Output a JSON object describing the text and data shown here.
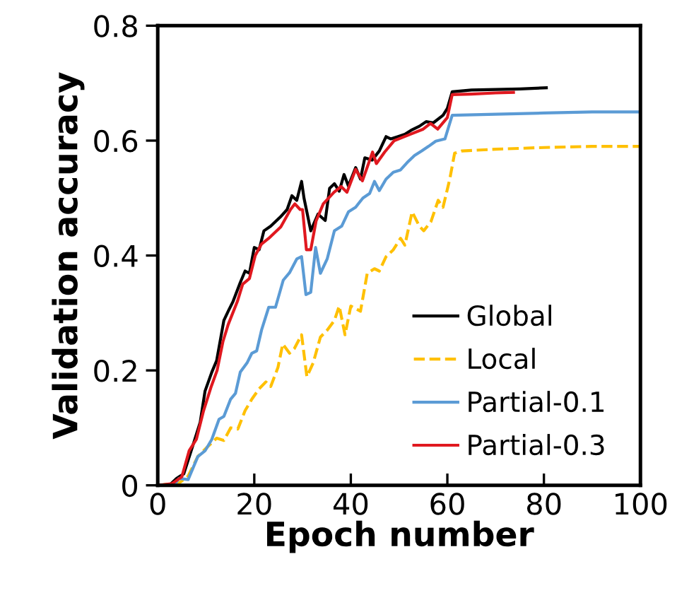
{
  "chart_data": {
    "type": "line",
    "xlabel": "Epoch number",
    "ylabel": "Validation accuracy",
    "xlim": [
      0,
      100
    ],
    "xticks": [
      0,
      20,
      40,
      60,
      80,
      100
    ],
    "ylim": [
      0,
      0.8
    ],
    "yticks": [
      0,
      0.2,
      0.4,
      0.6,
      0.8
    ],
    "grid": false,
    "legend": "lower right",
    "series": [
      {
        "name": "Global",
        "color": "#000000",
        "line_style": "solid",
        "x": [
          0,
          2.4,
          3.9,
          5.4,
          7.3,
          8.8,
          9.8,
          11.2,
          12.2,
          13.7,
          14.6,
          15.6,
          17.1,
          18.1,
          19,
          20,
          21,
          22,
          23.4,
          25.4,
          26.8,
          27.8,
          28.8,
          29.8,
          30.3,
          31.7,
          33.2,
          34.7,
          35.6,
          36.6,
          37.6,
          38.6,
          39.5,
          41,
          42,
          42.9,
          44.4,
          45.9,
          47.3,
          48.3,
          49.8,
          51.2,
          52.7,
          54.2,
          55.6,
          57.1,
          59.1,
          60,
          61,
          65,
          70,
          75,
          80.5
        ],
        "values": [
          0,
          0,
          0.012,
          0.02,
          0.07,
          0.11,
          0.164,
          0.197,
          0.217,
          0.287,
          0.303,
          0.32,
          0.353,
          0.373,
          0.369,
          0.414,
          0.41,
          0.443,
          0.451,
          0.467,
          0.48,
          0.504,
          0.496,
          0.529,
          0.5,
          0.443,
          0.472,
          0.461,
          0.517,
          0.525,
          0.512,
          0.541,
          0.521,
          0.553,
          0.533,
          0.57,
          0.566,
          0.582,
          0.607,
          0.603,
          0.607,
          0.611,
          0.619,
          0.625,
          0.633,
          0.631,
          0.644,
          0.656,
          0.685,
          0.688,
          0.689,
          0.69,
          0.692
        ]
      },
      {
        "name": "Local",
        "color": "#ffc000",
        "line_style": "dashed",
        "x": [
          0,
          4.4,
          6.3,
          8.3,
          10.2,
          12.2,
          13.7,
          15.1,
          16.6,
          18.1,
          19.5,
          21,
          22.4,
          23.4,
          24.9,
          25.9,
          27.3,
          28.3,
          29.8,
          30.9,
          32.2,
          33.7,
          35.1,
          36.6,
          37.6,
          38.8,
          40,
          42,
          43.4,
          44.9,
          45.9,
          47.3,
          48.8,
          50.3,
          51.2,
          52.7,
          54.2,
          55.1,
          56.6,
          58.1,
          59.1,
          60.5,
          61.5,
          63,
          70,
          80,
          90,
          100
        ],
        "values": [
          0,
          0.004,
          0.016,
          0.05,
          0.066,
          0.082,
          0.078,
          0.1,
          0.098,
          0.13,
          0.15,
          0.168,
          0.18,
          0.172,
          0.205,
          0.246,
          0.23,
          0.238,
          0.262,
          0.189,
          0.213,
          0.258,
          0.27,
          0.287,
          0.312,
          0.262,
          0.312,
          0.303,
          0.369,
          0.377,
          0.373,
          0.398,
          0.41,
          0.43,
          0.418,
          0.476,
          0.451,
          0.443,
          0.459,
          0.496,
          0.484,
          0.533,
          0.578,
          0.582,
          0.585,
          0.588,
          0.59,
          0.59
        ]
      },
      {
        "name": "Partial-0.1",
        "color": "#5b9bd5",
        "line_style": "solid",
        "x": [
          0,
          3.4,
          4.4,
          6.3,
          8.3,
          9.8,
          11.2,
          12.7,
          13.7,
          15.1,
          16.1,
          17.1,
          18.5,
          19.5,
          20.5,
          21.5,
          23,
          24.4,
          26,
          27.3,
          28.8,
          29.8,
          30.7,
          31.7,
          32.7,
          33.7,
          35.1,
          36.6,
          38.1,
          39.5,
          41,
          42.5,
          43.9,
          44.9,
          45.9,
          47.3,
          48.8,
          50.3,
          51.7,
          53.2,
          54.7,
          56.1,
          57.6,
          59.5,
          61,
          70,
          80,
          90,
          100
        ],
        "values": [
          0,
          0,
          0.012,
          0.01,
          0.05,
          0.06,
          0.08,
          0.115,
          0.12,
          0.15,
          0.16,
          0.197,
          0.213,
          0.23,
          0.234,
          0.27,
          0.31,
          0.31,
          0.357,
          0.37,
          0.394,
          0.398,
          0.332,
          0.336,
          0.414,
          0.369,
          0.394,
          0.443,
          0.451,
          0.476,
          0.484,
          0.5,
          0.508,
          0.529,
          0.513,
          0.533,
          0.545,
          0.549,
          0.562,
          0.574,
          0.582,
          0.59,
          0.599,
          0.603,
          0.644,
          0.646,
          0.648,
          0.65,
          0.65
        ]
      },
      {
        "name": "Partial-0.3",
        "color": "#e0181f",
        "line_style": "solid",
        "x": [
          0,
          3,
          5,
          6.5,
          8,
          9.5,
          11,
          12.3,
          13.5,
          14.6,
          16.5,
          17.6,
          19,
          20.2,
          21.5,
          23,
          25.5,
          27.5,
          28.4,
          29.5,
          30,
          30.8,
          31.7,
          32.8,
          34.3,
          36.5,
          38,
          39.2,
          41,
          42.4,
          44.5,
          45.3,
          47,
          49,
          52,
          55,
          56.5,
          58,
          60,
          61,
          65,
          70,
          73.7
        ],
        "values": [
          0,
          0.003,
          0.015,
          0.06,
          0.08,
          0.13,
          0.17,
          0.2,
          0.25,
          0.28,
          0.32,
          0.35,
          0.36,
          0.4,
          0.42,
          0.43,
          0.45,
          0.48,
          0.49,
          0.48,
          0.48,
          0.41,
          0.41,
          0.46,
          0.49,
          0.51,
          0.52,
          0.51,
          0.55,
          0.53,
          0.58,
          0.56,
          0.58,
          0.6,
          0.61,
          0.62,
          0.63,
          0.62,
          0.64,
          0.68,
          0.681,
          0.683,
          0.684
        ]
      }
    ]
  }
}
